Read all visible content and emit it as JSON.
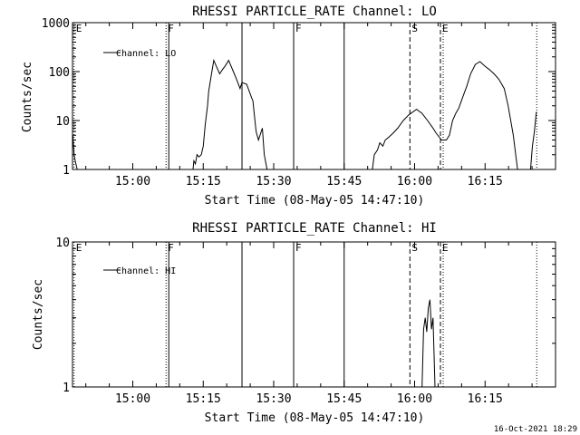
{
  "footer_text": "16-Oct-2021 18:29",
  "chart_data": [
    {
      "type": "line",
      "title": "RHESSI PARTICLE_RATE Channel: LO",
      "xlabel": "Start Time (08-May-05 14:47:10)",
      "ylabel": "Counts/sec",
      "yscale": "log",
      "xlim": [
        "14:47:10",
        "16:30:00"
      ],
      "ylim": [
        1,
        1000
      ],
      "x_tick_labels": [
        "15:00",
        "15:15",
        "15:30",
        "15:45",
        "16:00",
        "16:15"
      ],
      "y_tick_labels": [
        "1",
        "10",
        "100",
        "1000"
      ],
      "legend": [
        "Channel: LO"
      ],
      "legend_position": "top-left",
      "markers": [
        {
          "time": "14:47:30",
          "label": "E",
          "style": "dotted"
        },
        {
          "time": "15:07:05",
          "label": "F",
          "style": "dotted"
        },
        {
          "time": "15:07:40",
          "label": "",
          "style": "solid"
        },
        {
          "time": "15:23:15",
          "label": "",
          "style": "solid"
        },
        {
          "time": "15:34:15",
          "label": "F",
          "style": "solid"
        },
        {
          "time": "15:45:00",
          "label": "",
          "style": "solid"
        },
        {
          "time": "15:59:00",
          "label": "S",
          "style": "dashed"
        },
        {
          "time": "16:05:30",
          "label": "E",
          "style": "dashed"
        },
        {
          "time": "16:06:05",
          "label": "",
          "style": "dotted"
        },
        {
          "time": "16:26:00",
          "label": "",
          "style": "dotted"
        }
      ],
      "series": [
        {
          "name": "Channel: LO",
          "segments": [
            [
              [
                "14:47:15",
                5
              ],
              [
                "14:47:30",
                2
              ],
              [
                "14:47:45",
                1.5
              ],
              [
                "14:48:10",
                1
              ]
            ],
            [
              [
                "15:12:50",
                1
              ],
              [
                "15:13:00",
                1.5
              ],
              [
                "15:13:20",
                1.3
              ],
              [
                "15:13:40",
                2
              ],
              [
                "15:14:05",
                1.8
              ],
              [
                "15:14:35",
                2
              ],
              [
                "15:15:00",
                3
              ],
              [
                "15:15:25",
                8
              ],
              [
                "15:15:55",
                20
              ],
              [
                "15:16:10",
                40
              ],
              [
                "15:16:50",
                100
              ],
              [
                "15:17:15",
                170
              ],
              [
                "15:17:55",
                120
              ],
              [
                "15:18:30",
                90
              ],
              [
                "15:19:05",
                110
              ],
              [
                "15:19:40",
                130
              ],
              [
                "15:20:25",
                170
              ],
              [
                "15:21:25",
                100
              ],
              [
                "15:22:05",
                70
              ],
              [
                "15:22:50",
                45
              ],
              [
                "15:23:15",
                60
              ],
              [
                "15:24:15",
                55
              ],
              [
                "15:25:15",
                30
              ],
              [
                "15:25:35",
                25
              ],
              [
                "15:26:00",
                10
              ],
              [
                "15:26:15",
                6
              ],
              [
                "15:26:45",
                4
              ],
              [
                "15:27:35",
                7
              ],
              [
                "15:28:00",
                2
              ],
              [
                "15:28:35",
                1
              ]
            ],
            [
              [
                "15:51:00",
                1
              ],
              [
                "15:51:25",
                2
              ],
              [
                "15:52:05",
                2.5
              ],
              [
                "15:52:35",
                3.5
              ],
              [
                "15:53:15",
                3
              ],
              [
                "15:53:45",
                4
              ],
              [
                "15:54:25",
                4.5
              ],
              [
                "15:55:25",
                5.5
              ],
              [
                "15:56:25",
                7
              ],
              [
                "15:57:35",
                10
              ],
              [
                "15:58:45",
                13
              ],
              [
                "16:00:25",
                17
              ],
              [
                "16:01:35",
                14
              ],
              [
                "16:02:45",
                10
              ],
              [
                "16:03:55",
                7
              ],
              [
                "16:04:35",
                5.5
              ],
              [
                "16:05:45",
                4
              ],
              [
                "16:06:45",
                4
              ],
              [
                "16:07:25",
                5
              ],
              [
                "16:08:05",
                10
              ],
              [
                "16:08:45",
                14
              ],
              [
                "16:09:25",
                18
              ],
              [
                "16:10:15",
                30
              ],
              [
                "16:11:05",
                50
              ],
              [
                "16:11:55",
                90
              ],
              [
                "16:12:55",
                140
              ],
              [
                "16:13:55",
                160
              ],
              [
                "16:14:55",
                130
              ],
              [
                "16:15:55",
                110
              ],
              [
                "16:16:55",
                90
              ],
              [
                "16:17:55",
                70
              ],
              [
                "16:19:05",
                45
              ],
              [
                "16:19:55",
                20
              ],
              [
                "16:21:00",
                5
              ],
              [
                "16:21:55",
                1
              ]
            ],
            [
              [
                "16:24:40",
                1
              ],
              [
                "16:25:05",
                3
              ],
              [
                "16:25:30",
                6
              ],
              [
                "16:25:55",
                15
              ]
            ]
          ]
        }
      ]
    },
    {
      "type": "line",
      "title": "RHESSI PARTICLE_RATE Channel: HI",
      "xlabel": "Start Time (08-May-05 14:47:10)",
      "ylabel": "Counts/sec",
      "yscale": "log",
      "xlim": [
        "14:47:10",
        "16:30:00"
      ],
      "ylim": [
        1,
        10
      ],
      "x_tick_labels": [
        "15:00",
        "15:15",
        "15:30",
        "15:45",
        "16:00",
        "16:15"
      ],
      "y_tick_labels": [
        "1",
        "10"
      ],
      "legend": [
        "Channel: HI"
      ],
      "legend_position": "top-left",
      "markers": [
        {
          "time": "14:47:30",
          "label": "E",
          "style": "dotted"
        },
        {
          "time": "15:07:05",
          "label": "F",
          "style": "dotted"
        },
        {
          "time": "15:07:40",
          "label": "",
          "style": "solid"
        },
        {
          "time": "15:23:15",
          "label": "",
          "style": "solid"
        },
        {
          "time": "15:34:15",
          "label": "F",
          "style": "solid"
        },
        {
          "time": "15:45:00",
          "label": "",
          "style": "solid"
        },
        {
          "time": "15:59:00",
          "label": "S",
          "style": "dashed"
        },
        {
          "time": "16:05:30",
          "label": "E",
          "style": "dashed"
        },
        {
          "time": "16:06:05",
          "label": "",
          "style": "dotted"
        },
        {
          "time": "16:26:00",
          "label": "",
          "style": "dotted"
        }
      ],
      "series": [
        {
          "name": "Channel: HI",
          "segments": [
            [
              [
                "16:01:35",
                1
              ],
              [
                "16:01:55",
                2.5
              ],
              [
                "16:02:15",
                3
              ],
              [
                "16:02:35",
                2.4
              ],
              [
                "16:02:55",
                3.5
              ],
              [
                "16:03:15",
                4
              ],
              [
                "16:03:35",
                2.5
              ],
              [
                "16:03:55",
                3
              ],
              [
                "16:04:20",
                1
              ]
            ]
          ]
        }
      ]
    }
  ]
}
